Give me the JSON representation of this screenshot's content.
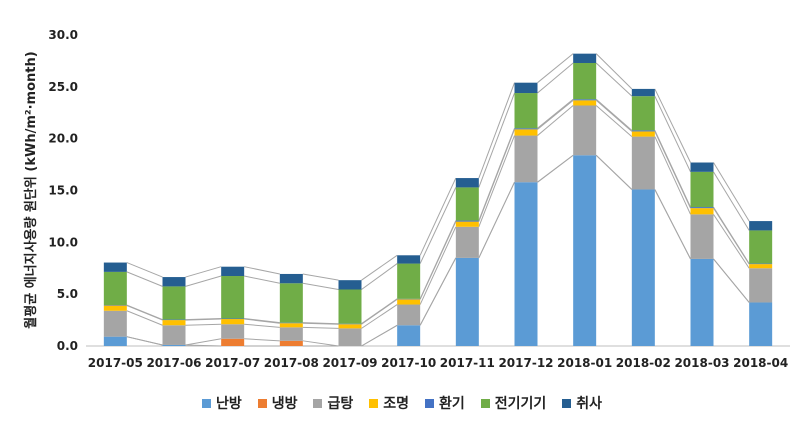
{
  "chart_data": {
    "type": "bar",
    "stacked": true,
    "ylabel": "월평균 에너지사용량 원단위 (kWh/m²·month)",
    "ylim": [
      0,
      30
    ],
    "yticks": [
      "0.0",
      "5.0",
      "10.0",
      "15.0",
      "20.0",
      "25.0",
      "30.0"
    ],
    "grid": false,
    "legend_position": "bottom",
    "categories": [
      "2017-05",
      "2017-06",
      "2017-07",
      "2017-08",
      "2017-09",
      "2017-10",
      "2017-11",
      "2017-12",
      "2018-01",
      "2018-02",
      "2018-03",
      "2018-04"
    ],
    "series": [
      {
        "name": "난방",
        "color": "#5b9bd5",
        "values": [
          0.9,
          0.1,
          0.0,
          0.0,
          0.0,
          2.0,
          8.5,
          15.8,
          18.4,
          15.1,
          8.4,
          4.2
        ]
      },
      {
        "name": "냉방",
        "color": "#ed7d31",
        "values": [
          0.0,
          0.0,
          0.7,
          0.5,
          0.0,
          0.0,
          0.0,
          0.0,
          0.0,
          0.0,
          0.0,
          0.0
        ]
      },
      {
        "name": "급탕",
        "color": "#a5a5a5",
        "values": [
          2.5,
          1.9,
          1.4,
          1.3,
          1.7,
          2.0,
          3.0,
          4.5,
          4.8,
          5.1,
          4.3,
          3.3
        ]
      },
      {
        "name": "조명",
        "color": "#ffc000",
        "values": [
          0.5,
          0.5,
          0.5,
          0.4,
          0.4,
          0.5,
          0.5,
          0.6,
          0.5,
          0.5,
          0.6,
          0.4
        ]
      },
      {
        "name": "환기",
        "color": "#4472c4",
        "values": [
          0.05,
          0.05,
          0.05,
          0.05,
          0.05,
          0.05,
          0.1,
          0.1,
          0.1,
          0.1,
          0.1,
          0.05
        ]
      },
      {
        "name": "전기기기",
        "color": "#70ad47",
        "values": [
          3.2,
          3.2,
          4.1,
          3.8,
          3.3,
          3.4,
          3.2,
          3.4,
          3.5,
          3.3,
          3.4,
          3.2
        ]
      },
      {
        "name": "취사",
        "color": "#255e91",
        "values": [
          0.9,
          0.9,
          0.9,
          0.9,
          0.9,
          0.8,
          0.9,
          1.0,
          0.9,
          0.7,
          0.9,
          0.9
        ]
      }
    ]
  }
}
